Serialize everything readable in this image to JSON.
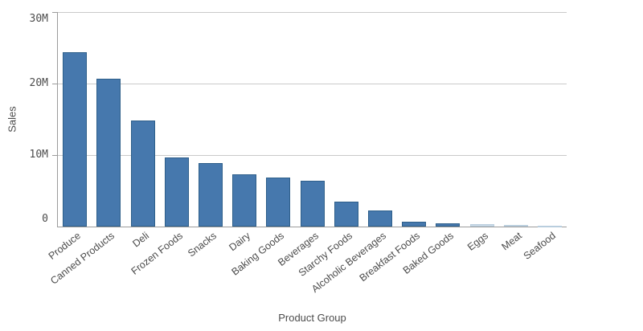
{
  "chart_data": {
    "type": "bar",
    "title": "",
    "xlabel": "Product Group",
    "ylabel": "Sales",
    "categories": [
      "Produce",
      "Canned Products",
      "Deli",
      "Frozen Foods",
      "Snacks",
      "Dairy",
      "Baking Goods",
      "Beverages",
      "Starchy Foods",
      "Alcoholic Beverages",
      "Breakfast Foods",
      "Baked Goods",
      "Eggs",
      "Meat",
      "Seafood"
    ],
    "values_millions": [
      24.4,
      20.7,
      14.8,
      9.6,
      8.8,
      7.3,
      6.8,
      6.4,
      3.4,
      2.2,
      0.6,
      0.4,
      0.3,
      0.15,
      0.08
    ],
    "unit": "M",
    "ylim": [
      0,
      30
    ],
    "yticks": [
      {
        "value": 0,
        "label": "0"
      },
      {
        "value": 10,
        "label": "10M"
      },
      {
        "value": 20,
        "label": "20M"
      },
      {
        "value": 30,
        "label": "30M"
      }
    ],
    "grid": true,
    "legend": false,
    "sort": "descending"
  },
  "colors": {
    "bar_fill": "#4678ad",
    "bar_border": "#2e5f8a",
    "seafood_bar_fill": "#ccdbe8",
    "seafood_bar_border": "#b9cede",
    "gridline": "#cacaca",
    "axis_line": "#9b9b9b",
    "text": "#4c4c4c",
    "background": "#ffffff"
  }
}
